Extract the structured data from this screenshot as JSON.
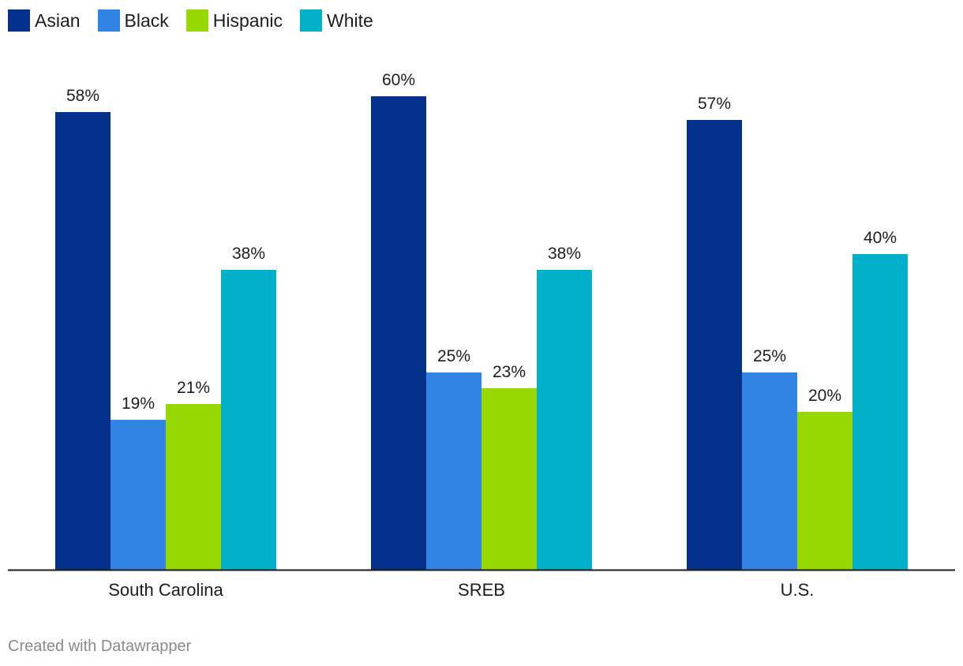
{
  "chart_data": {
    "type": "bar",
    "categories": [
      "South Carolina",
      "SREB",
      "U.S."
    ],
    "series": [
      {
        "name": "Asian",
        "color": "#03318c",
        "values": [
          58,
          60,
          57
        ],
        "labels": [
          "58%",
          "60%",
          "57%"
        ]
      },
      {
        "name": "Black",
        "color": "#3183e4",
        "values": [
          19,
          25,
          25
        ],
        "labels": [
          "19%",
          "25%",
          "25%"
        ]
      },
      {
        "name": "Hispanic",
        "color": "#98d802",
        "values": [
          21,
          23,
          20
        ],
        "labels": [
          "21%",
          "23%",
          "20%"
        ]
      },
      {
        "name": "White",
        "color": "#00b0c8",
        "values": [
          38,
          38,
          40
        ],
        "labels": [
          "38%",
          "38%",
          "40%"
        ]
      }
    ],
    "ylim": [
      0,
      60
    ],
    "title": "",
    "xlabel": "",
    "ylabel": "",
    "legend_position": "top-left"
  },
  "footer": {
    "credit": "Created with Datawrapper"
  }
}
